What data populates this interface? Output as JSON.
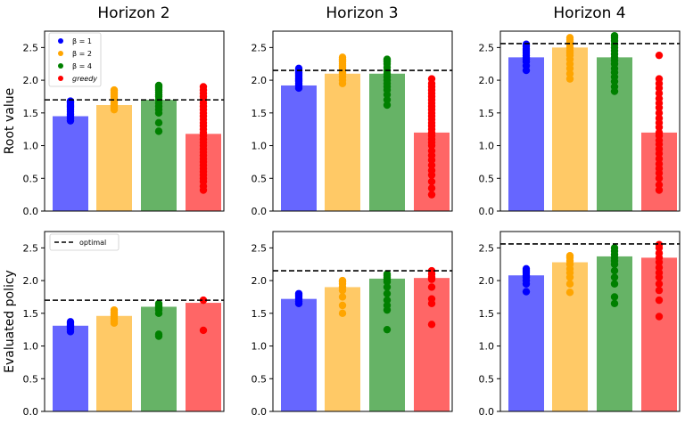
{
  "colors": {
    "beta1": "#0000ff",
    "beta2": "#ffa500",
    "beta4": "#008000",
    "greedy": "#ff0000",
    "optimal_line": "#000000"
  },
  "row_labels": [
    "Root value",
    "Evaluated policy"
  ],
  "column_titles": [
    "Horizon 2",
    "Horizon 3",
    "Horizon 4"
  ],
  "legend_methods": {
    "entries": [
      {
        "label": "β = 1",
        "color_key": "beta1"
      },
      {
        "label": "β = 2",
        "color_key": "beta2"
      },
      {
        "label": "β = 4",
        "color_key": "beta4"
      },
      {
        "label": "greedy",
        "color_key": "greedy"
      }
    ]
  },
  "legend_optimal": {
    "label": "optimal"
  },
  "chart_data": [
    {
      "type": "bar",
      "title": "Horizon 2",
      "ylabel": "Root value",
      "ylim": [
        0,
        2.75
      ],
      "yticks": [
        "0.0",
        "0.5",
        "1.0",
        "1.5",
        "2.0",
        "2.5"
      ],
      "optimal": 1.7,
      "legend": "top-left",
      "bars": [
        {
          "color_key": "beta1",
          "value": 1.45,
          "points": [
            1.38,
            1.42,
            1.45,
            1.48,
            1.52,
            1.55,
            1.58,
            1.6,
            1.62,
            1.65,
            1.67,
            1.68
          ]
        },
        {
          "color_key": "beta2",
          "value": 1.62,
          "points": [
            1.55,
            1.58,
            1.6,
            1.62,
            1.65,
            1.68,
            1.72,
            1.75,
            1.78,
            1.8,
            1.82,
            1.84,
            1.85
          ]
        },
        {
          "color_key": "beta4",
          "value": 1.7,
          "points": [
            1.22,
            1.35,
            1.5,
            1.55,
            1.6,
            1.65,
            1.7,
            1.75,
            1.78,
            1.82,
            1.85,
            1.88,
            1.9,
            1.92
          ]
        },
        {
          "color_key": "greedy",
          "value": 1.18,
          "points": [
            0.32,
            0.38,
            0.45,
            0.5,
            0.55,
            0.6,
            0.65,
            0.7,
            0.75,
            0.8,
            0.85,
            0.9,
            0.95,
            1.0,
            1.05,
            1.1,
            1.15,
            1.2,
            1.25,
            1.3,
            1.35,
            1.4,
            1.45,
            1.5,
            1.55,
            1.6,
            1.65,
            1.7,
            1.75,
            1.8,
            1.85,
            1.9
          ]
        }
      ]
    },
    {
      "type": "bar",
      "title": "Horizon 3",
      "ylabel": "",
      "ylim": [
        0,
        2.75
      ],
      "yticks": [
        "0.0",
        "0.5",
        "1.0",
        "1.5",
        "2.0",
        "2.5"
      ],
      "optimal": 2.15,
      "bars": [
        {
          "color_key": "beta1",
          "value": 1.92,
          "points": [
            1.88,
            1.92,
            1.95,
            1.98,
            2.0,
            2.02,
            2.05,
            2.08,
            2.1,
            2.12,
            2.15,
            2.18
          ]
        },
        {
          "color_key": "beta2",
          "value": 2.1,
          "points": [
            1.95,
            2.0,
            2.05,
            2.1,
            2.12,
            2.15,
            2.18,
            2.2,
            2.22,
            2.25,
            2.28,
            2.3,
            2.32,
            2.35
          ]
        },
        {
          "color_key": "beta4",
          "value": 2.1,
          "points": [
            1.62,
            1.7,
            1.78,
            1.85,
            1.9,
            1.95,
            2.0,
            2.05,
            2.1,
            2.15,
            2.2,
            2.25,
            2.28,
            2.3,
            2.32
          ]
        },
        {
          "color_key": "greedy",
          "value": 1.2,
          "points": [
            0.25,
            0.35,
            0.45,
            0.55,
            0.62,
            0.7,
            0.78,
            0.85,
            0.92,
            1.0,
            1.05,
            1.1,
            1.15,
            1.2,
            1.25,
            1.3,
            1.35,
            1.4,
            1.45,
            1.5,
            1.55,
            1.6,
            1.65,
            1.7,
            1.75,
            1.8,
            1.85,
            1.9,
            1.95,
            2.02
          ]
        }
      ]
    },
    {
      "type": "bar",
      "title": "Horizon 4",
      "ylabel": "",
      "ylim": [
        0,
        2.75
      ],
      "yticks": [
        "0.0",
        "0.5",
        "1.0",
        "1.5",
        "2.0",
        "2.5"
      ],
      "optimal": 2.56,
      "bars": [
        {
          "color_key": "beta1",
          "value": 2.35,
          "points": [
            2.15,
            2.22,
            2.28,
            2.32,
            2.35,
            2.38,
            2.42,
            2.45,
            2.48,
            2.52,
            2.55
          ]
        },
        {
          "color_key": "beta2",
          "value": 2.5,
          "points": [
            2.02,
            2.1,
            2.18,
            2.25,
            2.32,
            2.38,
            2.42,
            2.45,
            2.5,
            2.55,
            2.58,
            2.62,
            2.65
          ]
        },
        {
          "color_key": "beta4",
          "value": 2.35,
          "points": [
            1.83,
            1.9,
            1.98,
            2.05,
            2.12,
            2.18,
            2.25,
            2.3,
            2.35,
            2.4,
            2.45,
            2.5,
            2.55,
            2.6,
            2.65,
            2.68
          ]
        },
        {
          "color_key": "greedy",
          "value": 1.2,
          "points": [
            0.32,
            0.4,
            0.5,
            0.58,
            0.65,
            0.72,
            0.8,
            0.88,
            0.95,
            1.02,
            1.08,
            1.15,
            1.2,
            1.28,
            1.35,
            1.42,
            1.5,
            1.58,
            1.65,
            1.72,
            1.8,
            1.88,
            1.95,
            2.02,
            2.38
          ]
        }
      ]
    },
    {
      "type": "bar",
      "title": "",
      "ylabel": "Evaluated policy",
      "ylim": [
        0,
        2.75
      ],
      "yticks": [
        "0.0",
        "0.5",
        "1.0",
        "1.5",
        "2.0",
        "2.5"
      ],
      "optimal": 1.7,
      "legend": "top-left",
      "bars": [
        {
          "color_key": "beta1",
          "value": 1.31,
          "points": [
            1.22,
            1.25,
            1.28,
            1.3,
            1.32,
            1.35,
            1.37
          ]
        },
        {
          "color_key": "beta2",
          "value": 1.46,
          "points": [
            1.35,
            1.38,
            1.42,
            1.45,
            1.48,
            1.5,
            1.52,
            1.55
          ]
        },
        {
          "color_key": "beta4",
          "value": 1.6,
          "points": [
            1.15,
            1.18,
            1.5,
            1.55,
            1.58,
            1.6,
            1.62,
            1.65
          ]
        },
        {
          "color_key": "greedy",
          "value": 1.66,
          "points": [
            1.24,
            1.7
          ]
        }
      ]
    },
    {
      "type": "bar",
      "title": "",
      "ylabel": "",
      "ylim": [
        0,
        2.75
      ],
      "yticks": [
        "0.0",
        "0.5",
        "1.0",
        "1.5",
        "2.0",
        "2.5"
      ],
      "optimal": 2.15,
      "bars": [
        {
          "color_key": "beta1",
          "value": 1.72,
          "points": [
            1.65,
            1.68,
            1.72,
            1.75,
            1.78,
            1.8
          ]
        },
        {
          "color_key": "beta2",
          "value": 1.9,
          "points": [
            1.5,
            1.62,
            1.75,
            1.85,
            1.9,
            1.95,
            1.98,
            2.0
          ]
        },
        {
          "color_key": "beta4",
          "value": 2.03,
          "points": [
            1.25,
            1.55,
            1.62,
            1.7,
            1.8,
            1.9,
            1.98,
            2.02,
            2.05,
            2.08,
            2.1
          ]
        },
        {
          "color_key": "greedy",
          "value": 2.04,
          "points": [
            1.33,
            1.65,
            1.72,
            1.9,
            2.02,
            2.05,
            2.1,
            2.15
          ]
        }
      ]
    },
    {
      "type": "bar",
      "title": "",
      "ylabel": "",
      "ylim": [
        0,
        2.75
      ],
      "yticks": [
        "0.0",
        "0.5",
        "1.0",
        "1.5",
        "2.0",
        "2.5"
      ],
      "optimal": 2.56,
      "bars": [
        {
          "color_key": "beta1",
          "value": 2.08,
          "points": [
            1.83,
            1.95,
            2.0,
            2.05,
            2.08,
            2.12,
            2.15,
            2.18
          ]
        },
        {
          "color_key": "beta2",
          "value": 2.28,
          "points": [
            1.82,
            1.95,
            2.05,
            2.12,
            2.18,
            2.25,
            2.3,
            2.35,
            2.38
          ]
        },
        {
          "color_key": "beta4",
          "value": 2.37,
          "points": [
            1.65,
            1.75,
            1.95,
            2.05,
            2.15,
            2.25,
            2.3,
            2.35,
            2.4,
            2.45,
            2.5
          ]
        },
        {
          "color_key": "greedy",
          "value": 2.35,
          "points": [
            1.45,
            1.7,
            1.85,
            1.95,
            2.05,
            2.12,
            2.2,
            2.28,
            2.35,
            2.42,
            2.5,
            2.55
          ]
        }
      ]
    }
  ]
}
